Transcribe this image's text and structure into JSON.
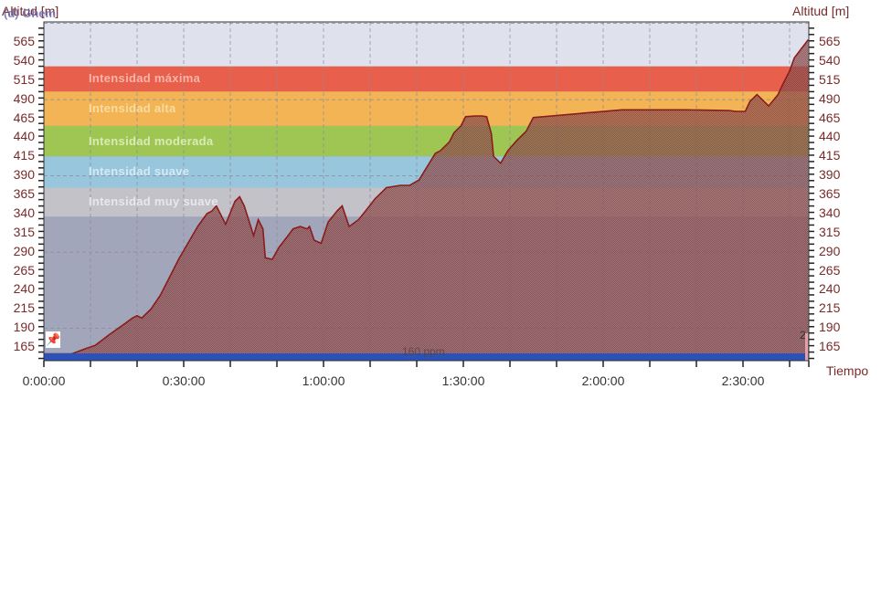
{
  "chart_data": {
    "type": "area",
    "title": "",
    "xlabel": "Tiempo",
    "ylabel": "Altitud [m]",
    "ylabel_right": "Altitud [m]",
    "overlap_label": "(d) Ghem",
    "ylim": [
      140,
      593
    ],
    "xlim_minutes": [
      0,
      164
    ],
    "y_ticks": [
      565,
      540,
      515,
      490,
      465,
      440,
      415,
      390,
      365,
      340,
      315,
      290,
      265,
      240,
      215,
      190,
      165
    ],
    "x_ticks": [
      "0:00:00",
      "0:30:00",
      "1:00:00",
      "1:30:00",
      "2:00:00",
      "2:30:00"
    ],
    "x_tick_minutes": [
      0,
      30,
      60,
      90,
      120,
      150
    ],
    "grid": true,
    "zones": [
      {
        "label": "Intensidad máxima",
        "from": 500,
        "to": 533,
        "color": "#e8604c",
        "text_color": "#f6b3a8"
      },
      {
        "label": "Intensidad alta",
        "from": 455,
        "to": 500,
        "color": "#f2b454",
        "text_color": "#f8dca0"
      },
      {
        "label": "Intensidad moderada",
        "from": 415,
        "to": 455,
        "color": "#9fc653",
        "text_color": "#d8ebb4"
      },
      {
        "label": "Intensidad suave",
        "from": 374,
        "to": 415,
        "color": "#98c6dc",
        "text_color": "#d4e9f3"
      },
      {
        "label": "Intensidad muy suave",
        "from": 336,
        "to": 374,
        "color": "#c3c2c8",
        "text_color": "#e8e8ec"
      }
    ],
    "background_top_color": "#dfe2ec",
    "background_bottom_color": "#a2a6ba",
    "series": [
      {
        "name": "Altitud",
        "color": "#8b1c1c",
        "fill": "#a07070",
        "x_minutes": [
          0,
          6,
          9,
          11,
          14,
          17,
          19,
          20,
          21,
          23,
          25,
          27,
          29,
          31,
          33,
          35,
          36,
          37,
          39,
          40,
          41,
          42,
          43,
          45,
          46,
          47,
          47.5,
          49,
          50.5,
          52,
          53.5,
          55,
          56.5,
          57,
          58,
          59.5,
          61,
          63,
          64,
          65.5,
          67.5,
          69.5,
          71,
          73.5,
          76.5,
          78.5,
          80.5,
          82.5,
          84,
          85,
          87,
          88,
          89.5,
          90.5,
          92.5,
          94,
          95,
          96,
          96.5,
          98,
          99.5,
          101.5,
          103.5,
          105,
          124,
          138,
          147,
          148.5,
          150.5,
          151.5,
          153,
          154,
          155.5,
          157.5,
          158.5,
          160,
          161,
          162.5,
          164
        ],
        "values": [
          156,
          156,
          163,
          167,
          181,
          194,
          203,
          206,
          203,
          215,
          233,
          257,
          281,
          302,
          323,
          340,
          343,
          350,
          326,
          341,
          356,
          362,
          350,
          311,
          332,
          320,
          282,
          280,
          296,
          308,
          320,
          323,
          320,
          323,
          305,
          301,
          329,
          344,
          350,
          323,
          332,
          347,
          359,
          374,
          377,
          377,
          384,
          404,
          419,
          422,
          434,
          446,
          455,
          467,
          468,
          468,
          467,
          445,
          415,
          406,
          422,
          436,
          448,
          466,
          476,
          476,
          475,
          474,
          474,
          487,
          496,
          490,
          481,
          496,
          509,
          527,
          544,
          556,
          568,
          584
        ]
      }
    ],
    "annotations": [
      {
        "text": "160 ppm",
        "x_minutes": 81,
        "y": 160
      },
      {
        "text": "2",
        "x_minutes": 163,
        "y": 175
      },
      {
        "text": "pushpin-marker",
        "x_minutes": 1.5,
        "y": 175
      }
    ],
    "legend": "none"
  }
}
